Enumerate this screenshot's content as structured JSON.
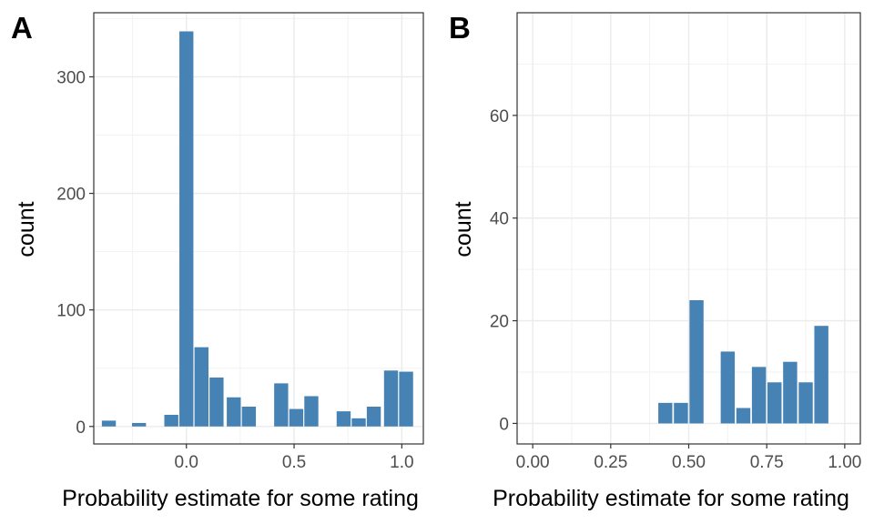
{
  "chart_data": [
    {
      "panel_tag": "A",
      "type": "bar",
      "xlabel": "Probability estimate for some rating",
      "ylabel": "count",
      "x": [
        -0.36,
        -0.22,
        -0.07,
        0.0,
        0.07,
        0.14,
        0.22,
        0.29,
        0.44,
        0.51,
        0.58,
        0.73,
        0.8,
        0.87,
        0.95,
        1.02
      ],
      "values": [
        5,
        3,
        10,
        339,
        68,
        42,
        25,
        17,
        37,
        15,
        26,
        13,
        7,
        17,
        48,
        47
      ],
      "bar_width": 0.065,
      "xlim": [
        -0.43,
        1.1
      ],
      "ylim": [
        -15,
        355
      ],
      "x_ticks": [
        0.0,
        0.5,
        1.0
      ],
      "x_tick_labels": [
        "0.0",
        "0.5",
        "1.0"
      ],
      "y_ticks": [
        0,
        100,
        200,
        300
      ],
      "y_tick_labels": [
        "0",
        "100",
        "200",
        "300"
      ],
      "grid": true,
      "bar_color": "#4682B4"
    },
    {
      "panel_tag": "B",
      "type": "bar",
      "xlabel": "Probability estimate for some rating",
      "ylabel": "count",
      "x": [
        0.425,
        0.475,
        0.525,
        0.625,
        0.675,
        0.725,
        0.775,
        0.825,
        0.875,
        0.925
      ],
      "values": [
        4,
        4,
        24,
        14,
        3,
        11,
        8,
        12,
        8,
        19
      ],
      "bar_width": 0.045,
      "xlim": [
        -0.05,
        1.05
      ],
      "ylim": [
        -4,
        80
      ],
      "x_ticks": [
        0.0,
        0.25,
        0.5,
        0.75,
        1.0
      ],
      "x_tick_labels": [
        "0.00",
        "0.25",
        "0.50",
        "0.75",
        "1.00"
      ],
      "y_ticks": [
        0,
        20,
        40,
        60
      ],
      "y_tick_labels": [
        "0",
        "20",
        "40",
        "60"
      ],
      "grid": true,
      "bar_color": "#4682B4"
    }
  ]
}
